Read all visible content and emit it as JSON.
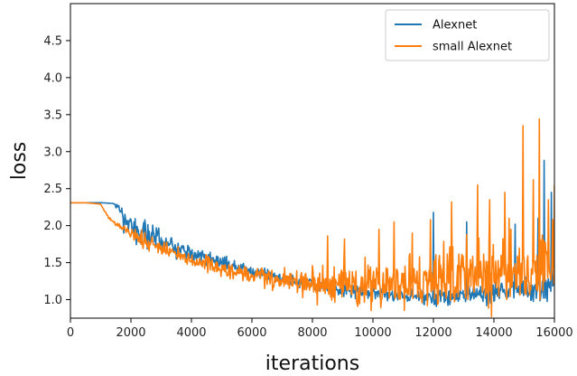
{
  "chart_data": {
    "type": "line",
    "title": "",
    "xlabel": "iterations",
    "ylabel": "loss",
    "xlim": [
      0,
      16000
    ],
    "ylim": [
      0.75,
      5.0
    ],
    "grid": false,
    "legend_position": "top-right",
    "x_ticks": [
      0,
      2000,
      4000,
      6000,
      8000,
      10000,
      12000,
      14000,
      16000
    ],
    "x_tick_labels": [
      "0",
      "2000",
      "4000",
      "6000",
      "8000",
      "10000",
      "12000",
      "14000",
      "16000"
    ],
    "y_ticks": [
      1.0,
      1.5,
      2.0,
      2.5,
      3.0,
      3.5,
      4.0,
      4.5
    ],
    "y_tick_labels": [
      "1.0",
      "1.5",
      "2.0",
      "2.5",
      "3.0",
      "3.5",
      "4.0",
      "4.5"
    ],
    "series": [
      {
        "name": "Alexnet",
        "color": "#1f77b4",
        "x": [
          0,
          500,
          1000,
          1400,
          1600,
          1800,
          2000,
          2400,
          3000,
          4000,
          5000,
          6000,
          7000,
          8000,
          9000,
          10000,
          11000,
          12000,
          13000,
          14000,
          15000,
          16000
        ],
        "y": [
          2.31,
          2.31,
          2.31,
          2.3,
          2.25,
          2.05,
          1.97,
          1.9,
          1.8,
          1.62,
          1.5,
          1.38,
          1.28,
          1.2,
          1.13,
          1.09,
          1.05,
          1.04,
          1.06,
          1.1,
          1.15,
          1.22
        ],
        "noise": [
          0,
          0,
          0,
          0,
          0.03,
          0.1,
          0.1,
          0.09,
          0.07,
          0.06,
          0.05,
          0.045,
          0.04,
          0.04,
          0.04,
          0.04,
          0.045,
          0.05,
          0.06,
          0.08,
          0.1,
          0.12
        ],
        "spikes": [
          [
            12000,
            2.18
          ],
          [
            13100,
            2.05
          ],
          [
            14700,
            2.02
          ],
          [
            15450,
            2.1
          ],
          [
            15650,
            2.88
          ],
          [
            15900,
            2.45
          ],
          [
            16000,
            1.75
          ]
        ]
      },
      {
        "name": "small Alexnet",
        "color": "#ff7f0e",
        "x": [
          0,
          500,
          1000,
          1200,
          1500,
          2000,
          3000,
          4000,
          5000,
          6000,
          7000,
          8000,
          9000,
          10000,
          11000,
          12000,
          13000,
          14000,
          15000,
          16000
        ],
        "y": [
          2.31,
          2.31,
          2.29,
          2.15,
          2.02,
          1.88,
          1.7,
          1.52,
          1.42,
          1.34,
          1.28,
          1.23,
          1.21,
          1.22,
          1.25,
          1.28,
          1.32,
          1.36,
          1.4,
          1.45
        ],
        "noise": [
          0,
          0,
          0,
          0.01,
          0.02,
          0.05,
          0.05,
          0.05,
          0.05,
          0.06,
          0.08,
          0.12,
          0.14,
          0.16,
          0.18,
          0.2,
          0.22,
          0.24,
          0.26,
          0.28
        ],
        "spikes": [
          [
            8500,
            1.86
          ],
          [
            9050,
            1.82
          ],
          [
            10200,
            1.95
          ],
          [
            10700,
            2.05
          ],
          [
            11300,
            1.9
          ],
          [
            11900,
            2.08
          ],
          [
            12600,
            2.32
          ],
          [
            13100,
            1.88
          ],
          [
            13450,
            2.55
          ],
          [
            13850,
            2.35
          ],
          [
            14350,
            2.45
          ],
          [
            14500,
            2.1
          ],
          [
            14950,
            3.35
          ],
          [
            15300,
            2.62
          ],
          [
            15500,
            3.44
          ],
          [
            15800,
            2.35
          ],
          [
            16000,
            2.55
          ]
        ]
      }
    ]
  }
}
